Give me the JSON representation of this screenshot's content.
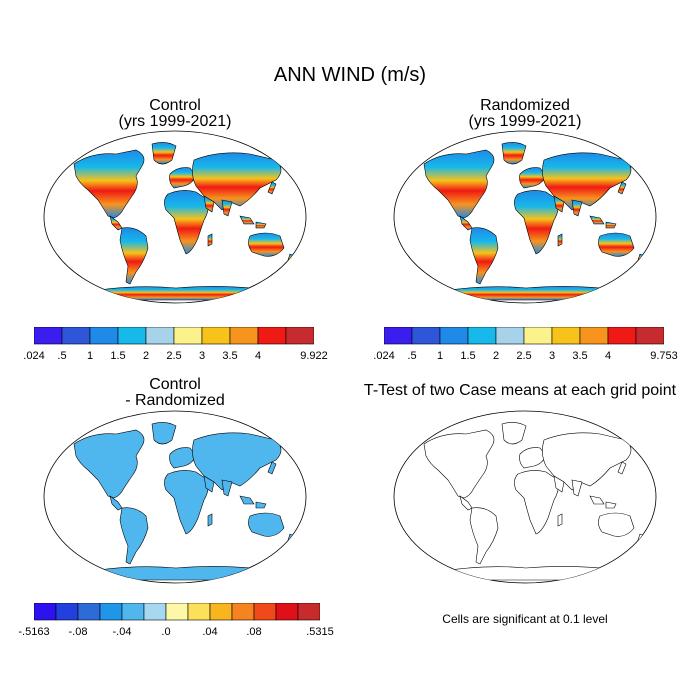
{
  "title": "ANN WIND (m/s)",
  "panels": [
    {
      "id": "control",
      "title1": "Control",
      "title2": "(yrs 1999-2021)"
    },
    {
      "id": "randomized",
      "title1": "Randomized",
      "title2": "(yrs 1999-2021)"
    },
    {
      "id": "diff",
      "title1": "Control",
      "title2": "- Randomized"
    },
    {
      "id": "ttest",
      "title1": "T-Test of two Case means at each grid point",
      "title2": ""
    }
  ],
  "colorbars": [
    {
      "id": "cb-control",
      "colors": [
        "#3a1ef0",
        "#2f55d9",
        "#1f8ae8",
        "#17b8ea",
        "#a6d3ea",
        "#fbf28b",
        "#f7c21a",
        "#f7941d",
        "#f01a14",
        "#c62b2f"
      ],
      "labels": [
        ".024",
        ".5",
        "1",
        "1.5",
        "2",
        "2.5",
        "3",
        "3.5",
        "4",
        "",
        "9.922"
      ]
    },
    {
      "id": "cb-randomized",
      "colors": [
        "#3a1ef0",
        "#2f55d9",
        "#1f8ae8",
        "#17b8ea",
        "#a6d3ea",
        "#fbf28b",
        "#f7c21a",
        "#f7941d",
        "#f01a14",
        "#c62b2f"
      ],
      "labels": [
        ".024",
        ".5",
        "1",
        "1.5",
        "2",
        "2.5",
        "3",
        "3.5",
        "4",
        "",
        "9.753"
      ]
    },
    {
      "id": "cb-diff",
      "colors": [
        "#2c12ee",
        "#2240dd",
        "#2d6bd8",
        "#1f96e8",
        "#4fb6ee",
        "#a6d8f2",
        "#fdf7a8",
        "#fde05a",
        "#f9b51e",
        "#f5831f",
        "#f04a1b",
        "#e01018",
        "#c92a2a"
      ],
      "labels": [
        "-.5163",
        "",
        "-.08",
        "",
        "-.04",
        "",
        "0",
        "",
        "0.04",
        "",
        "0.08",
        "",
        "",
        "0.5315"
      ],
      "label_display": [
        "-.5163",
        "",
        "-.08",
        "",
        "-.04",
        "",
        ".0",
        "",
        ".04",
        "",
        ".08",
        "",
        "",
        ".5315"
      ]
    }
  ],
  "note": "Cells are significant at 0.1 level",
  "colors": {
    "ocean": "#ffffff",
    "land_low": "#1f8ae8",
    "land_high": "#f01a14",
    "significant": "#e00012",
    "coast": "#000000"
  }
}
